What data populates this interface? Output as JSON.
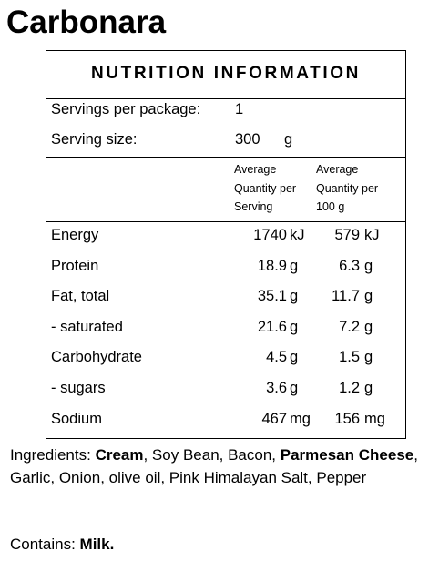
{
  "title": "Carbonara",
  "panel": {
    "heading": "NUTRITION INFORMATION",
    "servings_per_package": {
      "label": "Servings per package:",
      "value": 1
    },
    "serving_size": {
      "label": "Serving size:",
      "value": 300,
      "unit": "g"
    },
    "column_headers": [
      [
        "Average",
        "Quantity per",
        "Serving"
      ],
      [
        "Average",
        "Quantity per",
        "100 g"
      ]
    ],
    "rows": [
      {
        "name": "Energy",
        "serving": 1740,
        "serving_unit": "kJ",
        "per100": 579,
        "per100_unit": "kJ"
      },
      {
        "name": "Protein",
        "serving": 18.9,
        "serving_unit": "g",
        "per100": 6.3,
        "per100_unit": "g"
      },
      {
        "name": "Fat, total",
        "serving": 35.1,
        "serving_unit": "g",
        "per100": 11.7,
        "per100_unit": "g"
      },
      {
        "name": "- saturated",
        "serving": 21.6,
        "serving_unit": "g",
        "per100": 7.2,
        "per100_unit": "g"
      },
      {
        "name": "Carbohydrate",
        "serving": 4.5,
        "serving_unit": "g",
        "per100": 1.5,
        "per100_unit": "g"
      },
      {
        "name": "- sugars",
        "serving": 3.6,
        "serving_unit": "g",
        "per100": 1.2,
        "per100_unit": "g"
      },
      {
        "name": "Sodium",
        "serving": 467,
        "serving_unit": "mg",
        "per100": 156,
        "per100_unit": "mg"
      }
    ]
  },
  "ingredients": [
    {
      "text": "Ingredients: "
    },
    {
      "text": "Cream",
      "bold": true
    },
    {
      "text": ", Soy Bean, Bacon, "
    },
    {
      "text": "Parmesan Cheese",
      "bold": true
    },
    {
      "text": ", Garlic, Onion, olive oil, Pink Himalayan Salt, Pepper"
    }
  ],
  "contains": [
    {
      "text": "Contains: "
    },
    {
      "text": "Milk.",
      "bold": true
    }
  ]
}
